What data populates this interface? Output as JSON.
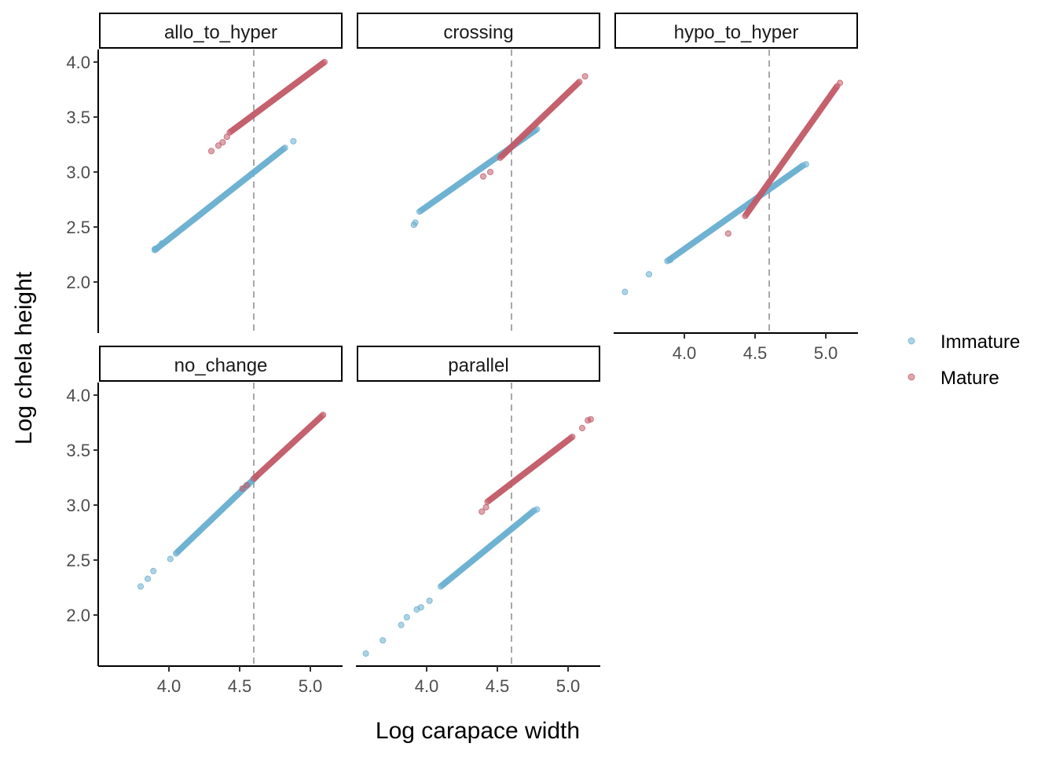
{
  "chart_data": {
    "type": "scatter",
    "layout": "facet_wrap",
    "xlabel": "Log carapace width",
    "ylabel": "Log chela height",
    "xlim": [
      3.5,
      5.25
    ],
    "ylim": [
      1.5,
      4.1
    ],
    "x_ticks": [
      "4.0",
      "4.5",
      "5.0"
    ],
    "y_ticks": [
      "2.0",
      "2.5",
      "3.0",
      "3.5",
      "4.0"
    ],
    "reference_line_x": 4.6,
    "grid": false,
    "legend_position": "right",
    "legend": [
      {
        "label": "Immature",
        "color": "#6aafd0"
      },
      {
        "label": "Mature",
        "color": "#c25b68"
      }
    ],
    "facets": [
      {
        "label": "allo_to_hyper",
        "series": [
          {
            "name": "Immature",
            "segments": [
              [
                3.9,
                2.29,
                4.82,
                3.22
              ]
            ],
            "extras": [
              [
                3.9,
                2.3
              ],
              [
                3.91,
                2.3
              ],
              [
                3.95,
                2.35
              ],
              [
                4.88,
                3.28
              ]
            ]
          },
          {
            "name": "Mature",
            "segments": [
              [
                4.43,
                3.36,
                5.1,
                4.0
              ]
            ],
            "extras": [
              [
                4.3,
                3.19
              ],
              [
                4.35,
                3.24
              ],
              [
                4.38,
                3.27
              ],
              [
                4.41,
                3.32
              ]
            ]
          }
        ]
      },
      {
        "label": "crossing",
        "series": [
          {
            "name": "Immature",
            "segments": [
              [
                3.95,
                2.64,
                4.78,
                3.39
              ]
            ],
            "extras": [
              [
                3.91,
                2.52
              ],
              [
                3.92,
                2.54
              ]
            ]
          },
          {
            "name": "Mature",
            "segments": [
              [
                4.52,
                3.13,
                5.08,
                3.82
              ]
            ],
            "extras": [
              [
                4.4,
                2.96
              ],
              [
                4.45,
                3.0
              ],
              [
                5.12,
                3.87
              ]
            ]
          }
        ]
      },
      {
        "label": "hypo_to_hyper",
        "series": [
          {
            "name": "Immature",
            "segments": [
              [
                3.88,
                2.19,
                4.84,
                3.06
              ]
            ],
            "extras": [
              [
                3.58,
                1.91
              ],
              [
                3.75,
                2.07
              ],
              [
                3.9,
                2.2
              ],
              [
                4.86,
                3.07
              ]
            ]
          },
          {
            "name": "Mature",
            "segments": [
              [
                4.43,
                2.6,
                5.08,
                3.78
              ]
            ],
            "extras": [
              [
                4.31,
                2.44
              ],
              [
                5.1,
                3.81
              ]
            ]
          }
        ]
      },
      {
        "label": "no_change",
        "series": [
          {
            "name": "Immature",
            "segments": [
              [
                4.05,
                2.56,
                4.62,
                3.26
              ]
            ],
            "extras": [
              [
                3.8,
                2.26
              ],
              [
                3.85,
                2.33
              ],
              [
                3.89,
                2.4
              ],
              [
                4.01,
                2.51
              ]
            ]
          },
          {
            "name": "Mature",
            "segments": [
              [
                4.6,
                3.24,
                5.09,
                3.82
              ]
            ],
            "extras": [
              [
                4.52,
                3.15
              ],
              [
                4.55,
                3.18
              ]
            ]
          }
        ]
      },
      {
        "label": "parallel",
        "series": [
          {
            "name": "Immature",
            "segments": [
              [
                4.1,
                2.26,
                4.76,
                2.95
              ]
            ],
            "extras": [
              [
                3.57,
                1.65
              ],
              [
                3.69,
                1.77
              ],
              [
                3.82,
                1.91
              ],
              [
                3.86,
                1.98
              ],
              [
                3.93,
                2.05
              ],
              [
                3.96,
                2.07
              ],
              [
                4.02,
                2.13
              ],
              [
                4.78,
                2.96
              ]
            ]
          },
          {
            "name": "Mature",
            "segments": [
              [
                4.43,
                3.03,
                5.03,
                3.62
              ]
            ],
            "extras": [
              [
                4.39,
                2.94
              ],
              [
                4.42,
                2.98
              ],
              [
                5.1,
                3.7
              ],
              [
                5.14,
                3.77
              ],
              [
                5.16,
                3.78
              ]
            ]
          }
        ]
      }
    ]
  }
}
